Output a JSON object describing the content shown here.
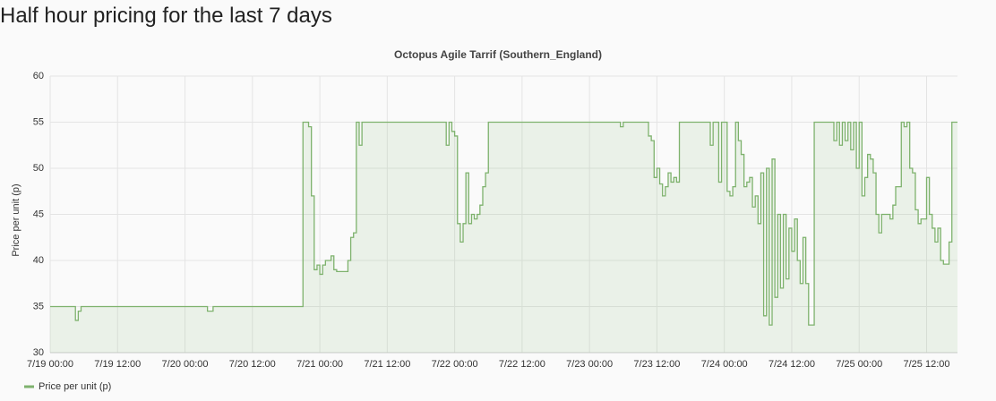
{
  "page_heading": "Half hour pricing for the last 7 days",
  "chart_data": {
    "type": "line",
    "title": "Octopus Agile Tarrif (Southern_England)",
    "y_label": "Price per unit (p)",
    "step": true,
    "grid": true,
    "legend": "bottom-left",
    "xlim": [
      "7/19 00:00",
      "7/25 17:30"
    ],
    "xticks": [
      "7/19 00:00",
      "7/19 12:00",
      "7/20 00:00",
      "7/20 12:00",
      "7/21 00:00",
      "7/21 12:00",
      "7/22 00:00",
      "7/22 12:00",
      "7/23 00:00",
      "7/23 12:00",
      "7/24 00:00",
      "7/24 12:00",
      "7/25 00:00",
      "7/25 12:00"
    ],
    "ylim": [
      30,
      60
    ],
    "yticks": [
      30,
      35,
      40,
      45,
      50,
      55,
      60
    ],
    "x": [
      "7/19 00:00",
      "7/19 04:30",
      "7/19 05:00",
      "7/19 05:30",
      "7/20 04:00",
      "7/20 05:00",
      "7/20 21:00",
      "7/20 22:00",
      "7/20 22:30",
      "7/20 23:00",
      "7/20 23:30",
      "7/21 00:00",
      "7/21 00:30",
      "7/21 01:00",
      "7/21 02:00",
      "7/21 02:30",
      "7/21 03:00",
      "7/21 05:00",
      "7/21 05:30",
      "7/21 06:00",
      "7/21 06:30",
      "7/21 07:00",
      "7/21 07:30",
      "7/21 22:30",
      "7/21 23:00",
      "7/21 23:30",
      "7/22 00:00",
      "7/22 00:30",
      "7/22 01:00",
      "7/22 01:30",
      "7/22 02:00",
      "7/22 02:30",
      "7/22 03:00",
      "7/22 03:30",
      "7/22 04:00",
      "7/22 04:30",
      "7/22 05:00",
      "7/22 05:30",
      "7/22 06:00",
      "7/23 05:30",
      "7/23 06:00",
      "7/23 10:30",
      "7/23 11:00",
      "7/23 11:30",
      "7/23 12:00",
      "7/23 12:30",
      "7/23 13:00",
      "7/23 13:30",
      "7/23 14:00",
      "7/23 14:30",
      "7/23 15:00",
      "7/23 15:30",
      "7/23 16:00",
      "7/23 21:30",
      "7/23 22:00",
      "7/23 23:00",
      "7/23 23:30",
      "7/24 00:30",
      "7/24 01:00",
      "7/24 01:30",
      "7/24 02:00",
      "7/24 02:30",
      "7/24 03:00",
      "7/24 03:30",
      "7/24 04:00",
      "7/24 04:30",
      "7/24 05:00",
      "7/24 05:30",
      "7/24 06:00",
      "7/24 06:30",
      "7/24 07:00",
      "7/24 07:30",
      "7/24 08:00",
      "7/24 08:30",
      "7/24 09:00",
      "7/24 09:30",
      "7/24 10:00",
      "7/24 10:30",
      "7/24 11:00",
      "7/24 11:30",
      "7/24 12:00",
      "7/24 12:30",
      "7/24 13:00",
      "7/24 13:30",
      "7/24 14:00",
      "7/24 14:30",
      "7/24 15:00",
      "7/24 16:00",
      "7/24 19:30",
      "7/24 20:00",
      "7/24 20:30",
      "7/24 21:00",
      "7/24 21:30",
      "7/24 22:00",
      "7/24 22:30",
      "7/24 23:00",
      "7/24 23:30",
      "7/25 00:00",
      "7/25 00:30",
      "7/25 01:00",
      "7/25 01:30",
      "7/25 02:00",
      "7/25 02:30",
      "7/25 03:00",
      "7/25 03:30",
      "7/25 04:00",
      "7/25 05:30",
      "7/25 06:00",
      "7/25 06:30",
      "7/25 07:30",
      "7/25 08:00",
      "7/25 08:30",
      "7/25 09:00",
      "7/25 09:30",
      "7/25 10:00",
      "7/25 10:30",
      "7/25 11:00",
      "7/25 12:00",
      "7/25 12:30",
      "7/25 13:00",
      "7/25 13:30",
      "7/25 14:00",
      "7/25 14:30",
      "7/25 15:00",
      "7/25 16:00",
      "7/25 16:30"
    ],
    "series": [
      {
        "name": "Price per unit (p)",
        "color": "#7eb26d",
        "values": [
          35,
          33.5,
          34.5,
          35,
          34.5,
          35,
          55,
          54.5,
          47,
          39,
          39.5,
          38.5,
          39.5,
          40,
          40.5,
          39,
          38.8,
          40,
          42.5,
          43,
          55,
          52.5,
          55,
          52.5,
          55,
          54,
          53.5,
          44,
          42,
          44,
          49.5,
          44,
          45,
          44.5,
          45,
          46,
          48,
          49.5,
          55,
          54.5,
          55,
          53.5,
          53,
          49,
          50,
          48.3,
          47,
          48,
          49.5,
          48.5,
          49,
          48.5,
          55,
          52.5,
          55,
          48.5,
          55,
          47.5,
          47,
          48,
          55,
          53,
          51.5,
          48,
          48.5,
          49,
          45.8,
          47,
          44,
          49.5,
          34,
          50,
          33,
          51,
          36,
          45,
          37,
          45,
          38,
          43.5,
          41,
          44.5,
          40,
          37.5,
          42.5,
          37.5,
          33,
          55,
          53,
          55,
          52.5,
          55,
          53,
          55,
          52,
          55,
          50,
          55,
          47,
          49,
          51.5,
          51,
          49.5,
          45,
          43,
          45,
          44.5,
          46,
          48,
          55,
          54.5,
          55,
          50,
          49.5,
          45.5,
          44,
          44.5,
          49,
          45,
          43.5,
          42,
          43.5,
          40,
          39.6,
          42,
          55
        ]
      }
    ]
  }
}
